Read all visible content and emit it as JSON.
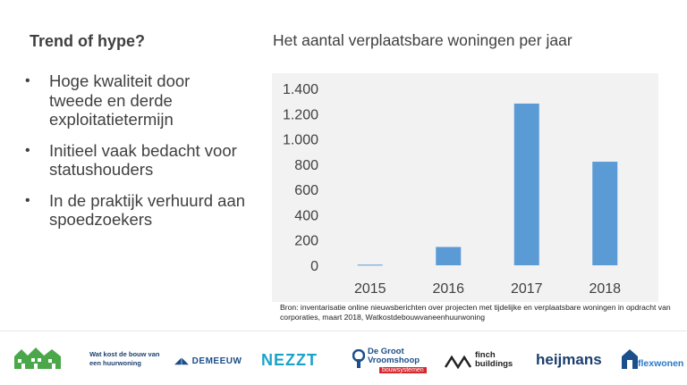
{
  "slide": {
    "title": "Trend of hype?",
    "bullets": [
      "Hoge kwaliteit door tweede en derde exploitatietermijn",
      "Initieel vaak bedacht voor statushouders",
      "In de praktijk verhuurd aan spoedzoekers"
    ]
  },
  "chart_data": {
    "type": "bar",
    "title": "Het aantal verplaatsbare woningen per jaar",
    "categories": [
      "2015",
      "2016",
      "2017",
      "2018"
    ],
    "values": [
      5,
      145,
      1280,
      820
    ],
    "ylim": [
      0,
      1400
    ],
    "yticks": [
      0,
      200,
      400,
      600,
      800,
      1000,
      1200,
      1400
    ],
    "ytick_labels": [
      "0",
      "200",
      "400",
      "600",
      "800",
      "1.000",
      "1.200",
      "1.400"
    ],
    "bar_color": "#5b9bd5",
    "grid": false,
    "legend": "none"
  },
  "source": "Bron: inventarisatie online nieuwsberichten over projecten met tijdelijke en verplaatsbare woningen in opdracht van corporaties, maart 2018, Watkostdebouwvaneenhuurwoning",
  "footer": {
    "logos": [
      {
        "name": "watkost",
        "text": "Wat kost de bouw van een huurwoning",
        "icon": "houses-icon"
      },
      {
        "name": "demeeuw",
        "text": "DEMEEUW",
        "color": "#1b4f8a"
      },
      {
        "name": "nezzt",
        "text": "NEZZT",
        "color": "#1aa3c9"
      },
      {
        "name": "degroot",
        "text": "De Groot Vroomshoop",
        "sub": "bouwsystemen",
        "color": "#1b4f8a"
      },
      {
        "name": "finch",
        "text": "finch buildings"
      },
      {
        "name": "heijmans",
        "text": "heijmans",
        "color": "#1b3f6e"
      },
      {
        "name": "flexwonen",
        "text": "flexwonen",
        "color": "#2a78c8"
      }
    ]
  }
}
